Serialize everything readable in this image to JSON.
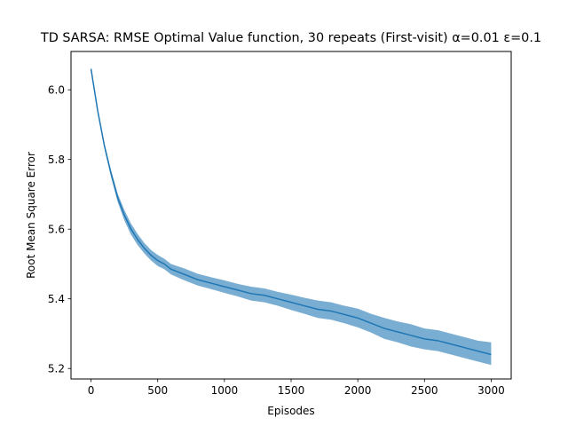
{
  "chart_data": {
    "type": "line",
    "title": "TD SARSA: RMSE Optimal Value function, 30 repeats (First-visit) α=0.01 ε=0.1",
    "xlabel": "Episodes",
    "ylabel": "Root Mean Square Error",
    "xlim": [
      -150,
      3150
    ],
    "ylim": [
      5.17,
      6.11
    ],
    "xticks": [
      0,
      500,
      1000,
      1500,
      2000,
      2500,
      3000
    ],
    "xtick_labels": [
      "0",
      "500",
      "1000",
      "1500",
      "2000",
      "2500",
      "3000"
    ],
    "yticks": [
      5.2,
      5.4,
      5.6,
      5.8,
      6.0
    ],
    "ytick_labels": [
      "5.2",
      "5.4",
      "5.6",
      "5.8",
      "6.0"
    ],
    "grid": false,
    "legend": "none",
    "series": [
      {
        "color": "#1f77b4",
        "band_color": "#1f77b4",
        "x": [
          0,
          25,
          50,
          100,
          150,
          200,
          250,
          300,
          350,
          400,
          450,
          500,
          550,
          600,
          700,
          800,
          900,
          1000,
          1100,
          1200,
          1300,
          1400,
          1500,
          1600,
          1700,
          1800,
          1900,
          2000,
          2100,
          2200,
          2300,
          2400,
          2500,
          2600,
          2700,
          2800,
          2900,
          3000
        ],
        "mean": [
          6.06,
          6.0,
          5.94,
          5.84,
          5.76,
          5.69,
          5.64,
          5.6,
          5.57,
          5.545,
          5.525,
          5.51,
          5.5,
          5.485,
          5.47,
          5.455,
          5.445,
          5.435,
          5.425,
          5.415,
          5.41,
          5.4,
          5.39,
          5.38,
          5.37,
          5.365,
          5.355,
          5.345,
          5.33,
          5.315,
          5.305,
          5.295,
          5.285,
          5.28,
          5.27,
          5.26,
          5.25,
          5.24
        ],
        "upper": [
          6.065,
          6.005,
          5.947,
          5.848,
          5.77,
          5.702,
          5.655,
          5.616,
          5.586,
          5.56,
          5.54,
          5.526,
          5.515,
          5.5,
          5.487,
          5.472,
          5.462,
          5.453,
          5.443,
          5.435,
          5.43,
          5.42,
          5.412,
          5.403,
          5.395,
          5.39,
          5.38,
          5.372,
          5.357,
          5.345,
          5.335,
          5.327,
          5.315,
          5.31,
          5.3,
          5.29,
          5.28,
          5.275
        ],
        "lower": [
          6.055,
          5.995,
          5.933,
          5.832,
          5.75,
          5.678,
          5.625,
          5.584,
          5.554,
          5.53,
          5.51,
          5.494,
          5.485,
          5.47,
          5.453,
          5.438,
          5.428,
          5.417,
          5.407,
          5.395,
          5.39,
          5.38,
          5.368,
          5.357,
          5.345,
          5.34,
          5.33,
          5.318,
          5.303,
          5.285,
          5.275,
          5.263,
          5.255,
          5.25,
          5.24,
          5.23,
          5.22,
          5.21
        ]
      }
    ]
  }
}
